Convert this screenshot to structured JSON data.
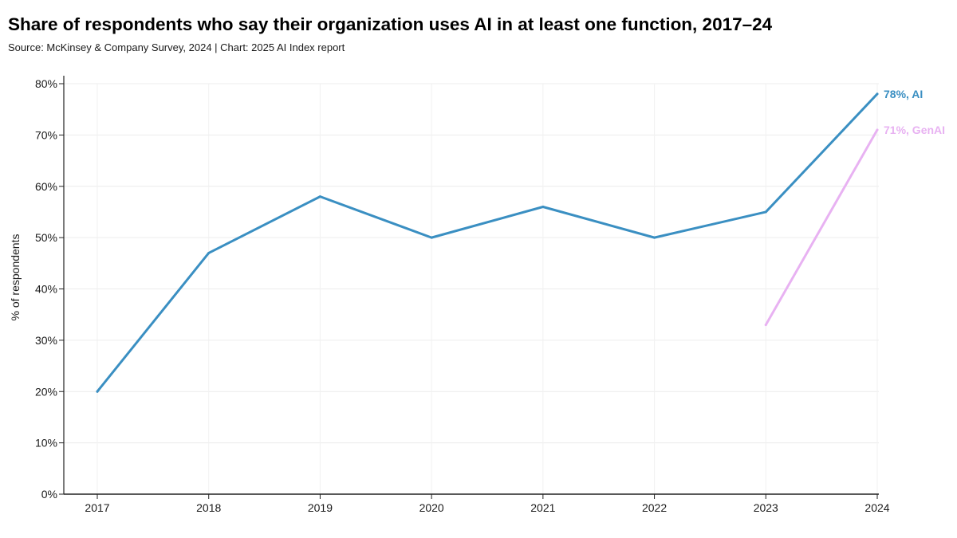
{
  "title": "Share of respondents who say their organization uses AI in at least one function, 2017–24",
  "subtitle": "Source: McKinsey & Company Survey, 2024 | Chart: 2025 AI Index report",
  "chart_data": {
    "type": "line",
    "ylabel": "% of respondents",
    "xlabel": "",
    "x": [
      "2017",
      "2018",
      "2019",
      "2020",
      "2021",
      "2022",
      "2023",
      "2024"
    ],
    "ylim": [
      0,
      80
    ],
    "yticks": [
      0,
      10,
      20,
      30,
      40,
      50,
      60,
      70,
      80
    ],
    "ytick_labels": [
      "0%",
      "10%",
      "20%",
      "30%",
      "40%",
      "50%",
      "60%",
      "70%",
      "80%"
    ],
    "grid": true,
    "series": [
      {
        "name": "AI",
        "color": "#3a8fc2",
        "x": [
          "2017",
          "2018",
          "2019",
          "2020",
          "2021",
          "2022",
          "2023",
          "2024"
        ],
        "values": [
          20,
          47,
          58,
          50,
          56,
          50,
          55,
          78
        ],
        "end_label": "78%, AI"
      },
      {
        "name": "GenAI",
        "color": "#e8b2f2",
        "x": [
          "2023",
          "2024"
        ],
        "values": [
          33,
          71
        ],
        "end_label": "71%, GenAI"
      }
    ]
  }
}
